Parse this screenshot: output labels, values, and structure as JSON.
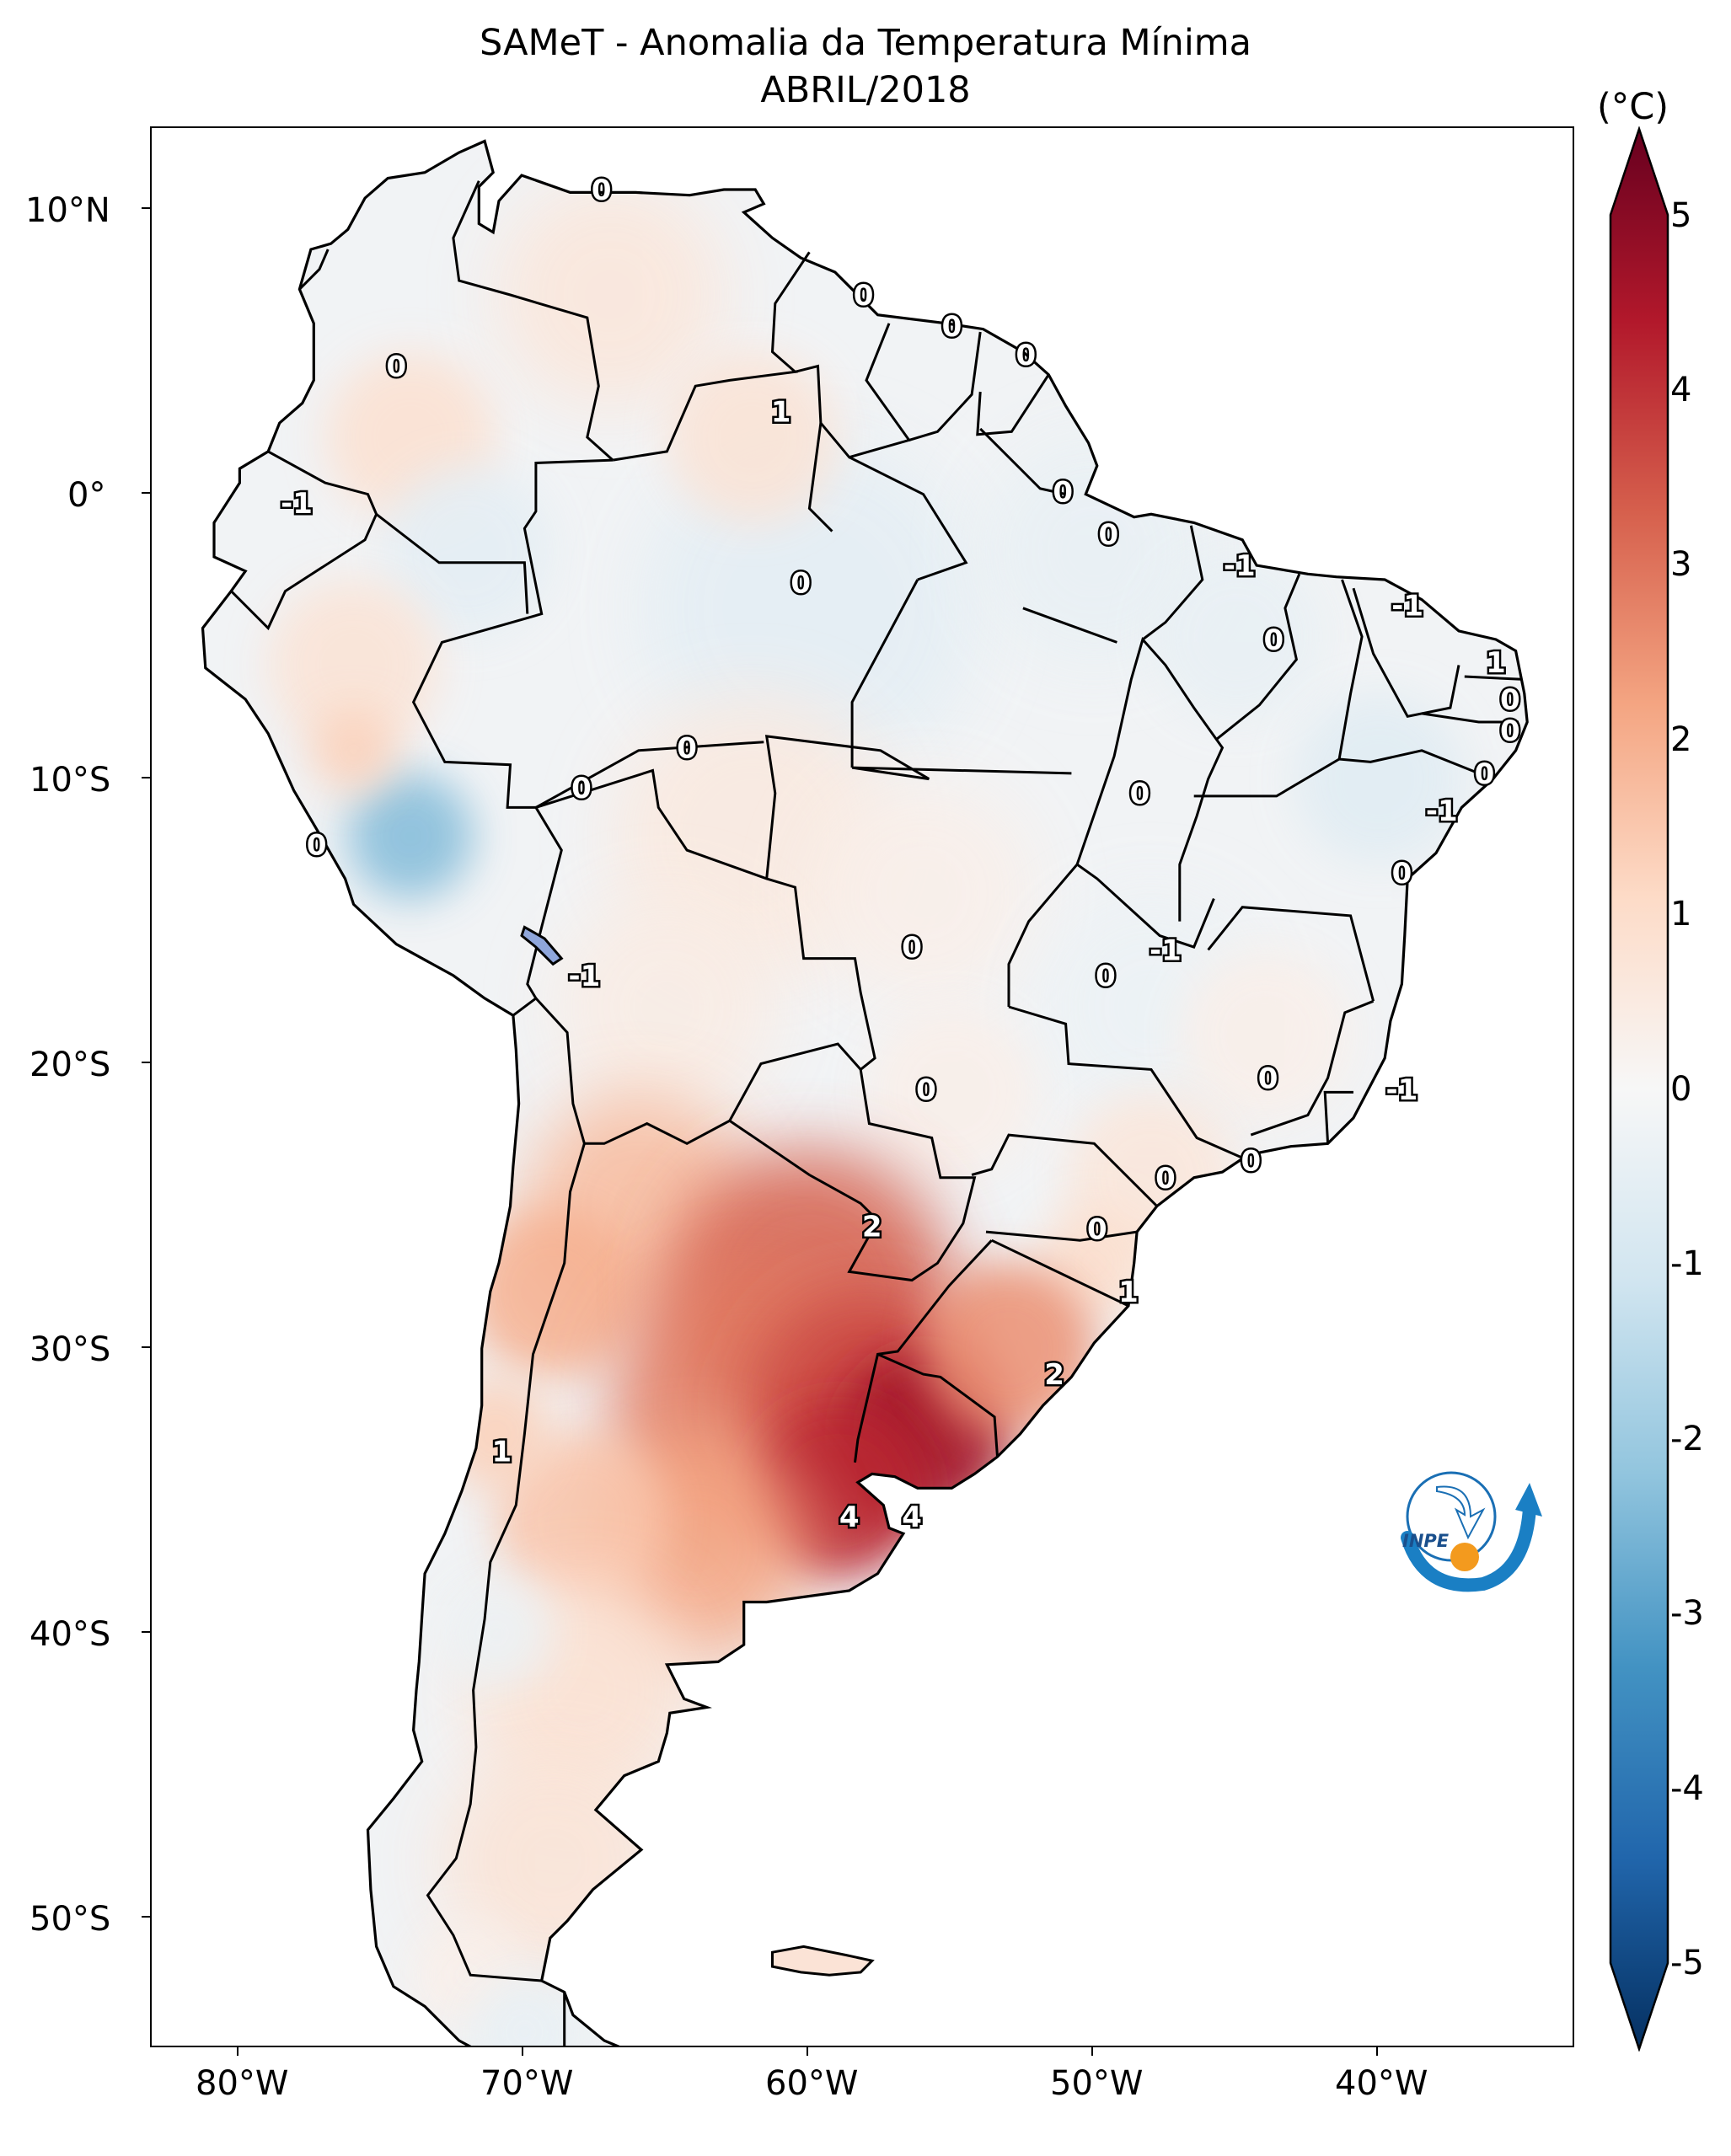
{
  "title_line1": "SAMeT - Anomalia da Temperatura Mínima",
  "title_line2": "ABRIL/2018",
  "colorbar": {
    "unit": "(°C)",
    "min": -5,
    "max": 5,
    "ticks": [
      "5",
      "4",
      "3",
      "2",
      "1",
      "0",
      "-1",
      "-2",
      "-3",
      "-4",
      "-5"
    ],
    "colors": [
      "#053061",
      "#2166ac",
      "#4393c3",
      "#92c5de",
      "#d1e5f0",
      "#f7f7f7",
      "#fddbc7",
      "#f4a582",
      "#d6604d",
      "#b2182b",
      "#67001f"
    ]
  },
  "axes": {
    "lat_labels": [
      "10°N",
      "0°",
      "10°S",
      "20°S",
      "30°S",
      "40°S",
      "50°S"
    ],
    "lon_labels": [
      "80°W",
      "70°W",
      "60°W",
      "50°W",
      "40°W"
    ]
  },
  "logo_text": "INPE",
  "contour_labels": [
    {
      "text": "0",
      "lon": -67.3,
      "lat": 10.7
    },
    {
      "text": "0",
      "lon": -58.1,
      "lat": 7.0
    },
    {
      "text": "0",
      "lon": -55.0,
      "lat": 5.9
    },
    {
      "text": "0",
      "lon": -52.4,
      "lat": 4.9
    },
    {
      "text": "0",
      "lon": -74.5,
      "lat": 4.5
    },
    {
      "text": "1",
      "lon": -61.0,
      "lat": 2.9
    },
    {
      "text": "0",
      "lon": -51.1,
      "lat": 0.1
    },
    {
      "text": "0",
      "lon": -49.5,
      "lat": -1.4
    },
    {
      "text": "-1",
      "lon": -78.0,
      "lat": -0.3
    },
    {
      "text": "-1",
      "lon": -44.9,
      "lat": -2.5
    },
    {
      "text": "0",
      "lon": -60.3,
      "lat": -3.1
    },
    {
      "text": "-1",
      "lon": -39.0,
      "lat": -3.9
    },
    {
      "text": "0",
      "lon": -43.7,
      "lat": -5.1
    },
    {
      "text": "1",
      "lon": -35.9,
      "lat": -5.9
    },
    {
      "text": "0",
      "lon": -35.4,
      "lat": -7.2
    },
    {
      "text": "0",
      "lon": -35.4,
      "lat": -8.3
    },
    {
      "text": "0",
      "lon": -64.3,
      "lat": -8.9
    },
    {
      "text": "0",
      "lon": -36.3,
      "lat": -9.8
    },
    {
      "text": "0",
      "lon": -68.0,
      "lat": -10.3
    },
    {
      "text": "0",
      "lon": -48.4,
      "lat": -10.5
    },
    {
      "text": "-1",
      "lon": -37.8,
      "lat": -11.1
    },
    {
      "text": "0",
      "lon": -77.3,
      "lat": -12.3
    },
    {
      "text": "0",
      "lon": -39.2,
      "lat": -13.3
    },
    {
      "text": "0",
      "lon": -56.4,
      "lat": -15.9
    },
    {
      "text": "-1",
      "lon": -47.5,
      "lat": -16.0
    },
    {
      "text": "-1",
      "lon": -67.9,
      "lat": -16.9
    },
    {
      "text": "0",
      "lon": -49.6,
      "lat": -16.9
    },
    {
      "text": "0",
      "lon": -43.9,
      "lat": -20.5
    },
    {
      "text": "0",
      "lon": -55.9,
      "lat": -20.9
    },
    {
      "text": "-1",
      "lon": -39.2,
      "lat": -20.9
    },
    {
      "text": "0",
      "lon": -44.5,
      "lat": -23.4
    },
    {
      "text": "0",
      "lon": -47.5,
      "lat": -24.0
    },
    {
      "text": "0",
      "lon": -49.9,
      "lat": -25.8
    },
    {
      "text": "2",
      "lon": -57.8,
      "lat": -25.7
    },
    {
      "text": "1",
      "lon": -48.8,
      "lat": -28.0
    },
    {
      "text": "2",
      "lon": -51.4,
      "lat": -30.9
    },
    {
      "text": "1",
      "lon": -70.8,
      "lat": -33.6
    },
    {
      "text": "4",
      "lon": -58.6,
      "lat": -35.9
    },
    {
      "text": "4",
      "lon": -56.4,
      "lat": -35.9
    }
  ]
}
